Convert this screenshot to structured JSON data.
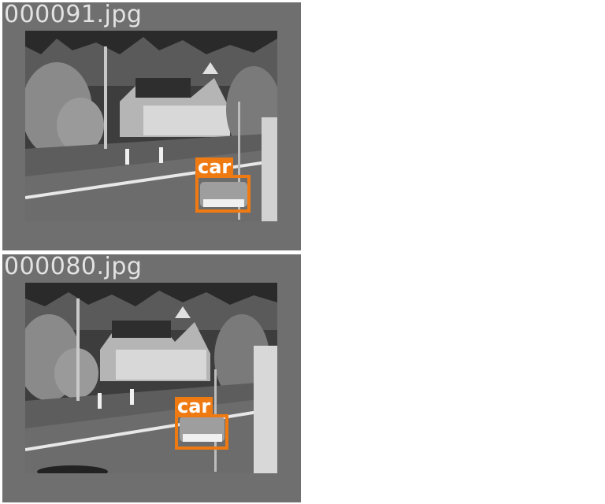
{
  "panels": [
    {
      "filename": "000091.jpg",
      "detections": [
        {
          "label": "car",
          "color": "#f07a12"
        }
      ]
    },
    {
      "filename": "000080.jpg",
      "detections": [
        {
          "label": "car",
          "color": "#f07a12"
        }
      ]
    }
  ],
  "colors": {
    "tile_background": "#6f6f6f",
    "label_text": "#e3e3e3",
    "detection": "#f07a12"
  }
}
